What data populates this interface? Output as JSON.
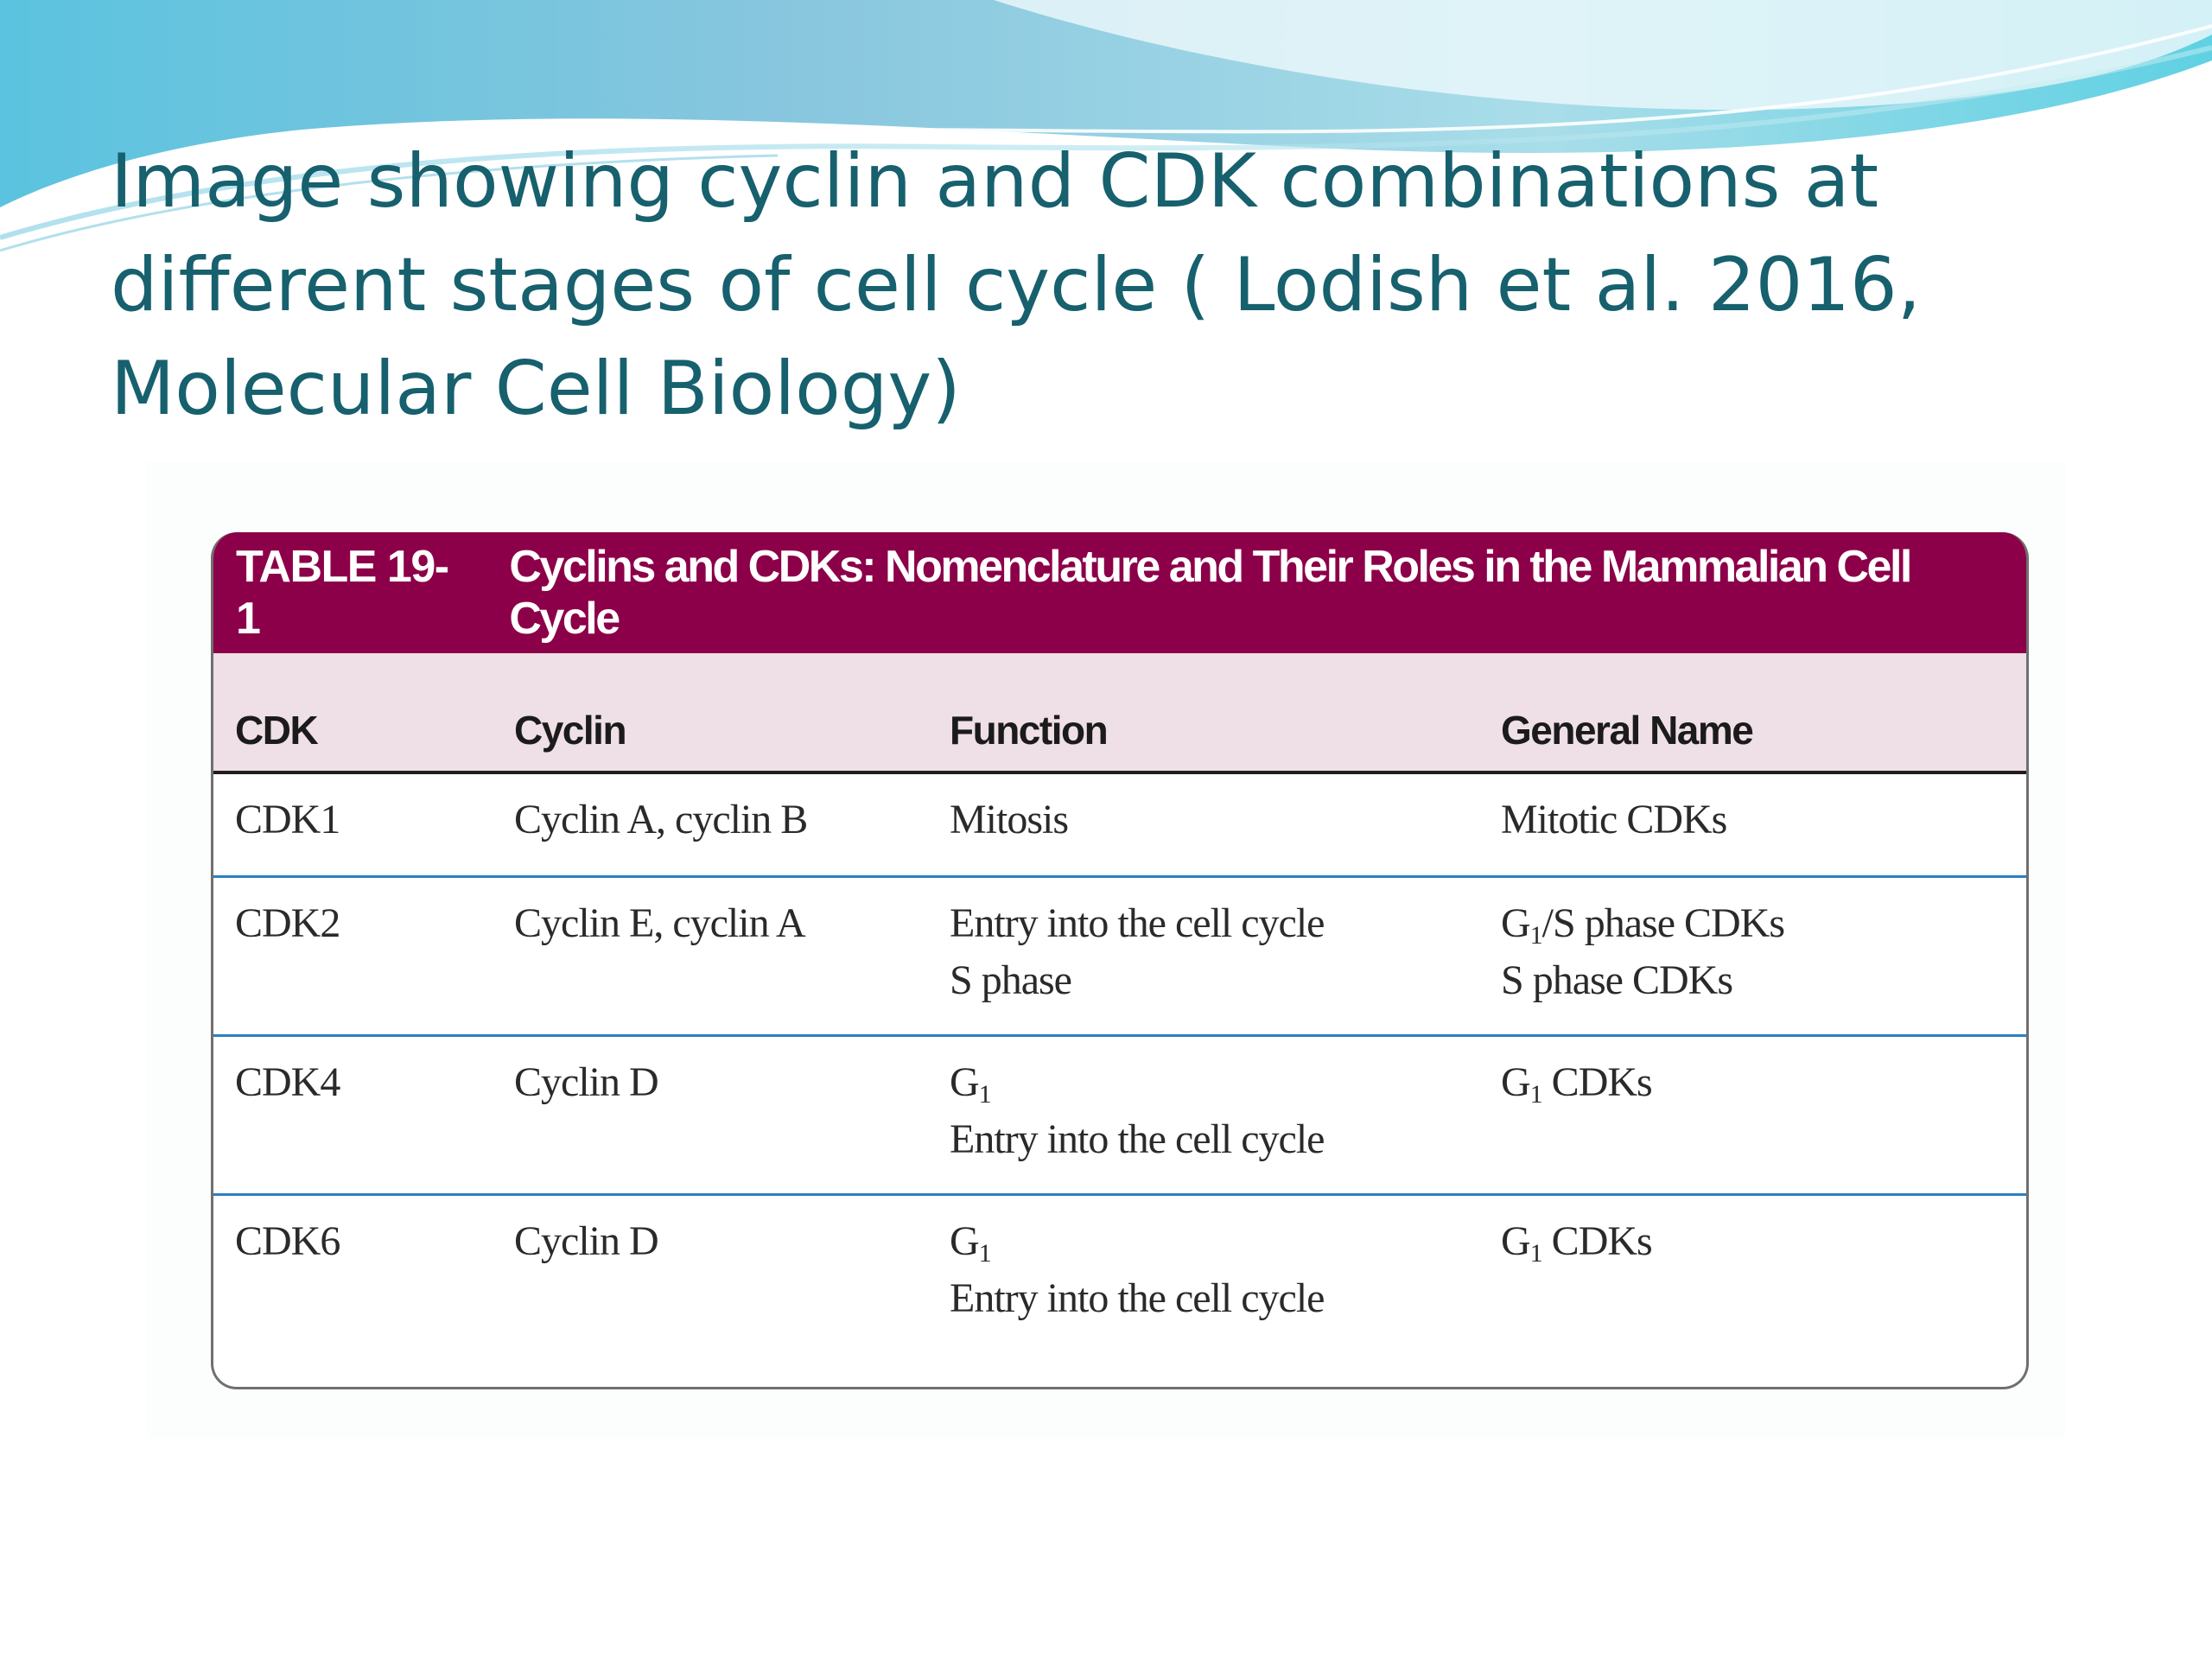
{
  "slide": {
    "title_line_1": "Image showing cyclin and CDK combinations at",
    "title_line_2": "different stages of cell cycle ( Lodish et al. 2016,",
    "title_line_3": "Molecular Cell Biology)"
  },
  "colors": {
    "title": "#17606e",
    "table_header": "#8c0049",
    "column_header": "#efdfe6",
    "row_rule": "#2e7fbf"
  },
  "table": {
    "number": "TABLE 19-1",
    "caption": "Cyclins and CDKs: Nomenclature and Their Roles in the Mammalian Cell Cycle",
    "headers": [
      "CDK",
      "Cyclin",
      "Function",
      "General Name"
    ],
    "rows": [
      {
        "cdk": "CDK1",
        "cyclin": "Cyclin A, cyclin B",
        "function": [
          "Mitosis"
        ],
        "general_name": [
          "Mitotic CDKs"
        ]
      },
      {
        "cdk": "CDK2",
        "cyclin": "Cyclin E, cyclin A",
        "function": [
          "Entry into the cell cycle",
          "S phase"
        ],
        "general_name": [
          {
            "pre": "G",
            "sub": "1",
            "post": "/S phase CDKs"
          },
          "S phase CDKs"
        ]
      },
      {
        "cdk": "CDK4",
        "cyclin": "Cyclin D",
        "function": [
          {
            "pre": "G",
            "sub": "1",
            "post": ""
          },
          "Entry into the cell cycle"
        ],
        "general_name": [
          {
            "pre": "G",
            "sub": "1",
            "post": " CDKs"
          }
        ]
      },
      {
        "cdk": "CDK6",
        "cyclin": "Cyclin D",
        "function": [
          {
            "pre": "G",
            "sub": "1",
            "post": ""
          },
          "Entry into the cell cycle"
        ],
        "general_name": [
          {
            "pre": "G",
            "sub": "1",
            "post": " CDKs"
          }
        ]
      }
    ]
  }
}
